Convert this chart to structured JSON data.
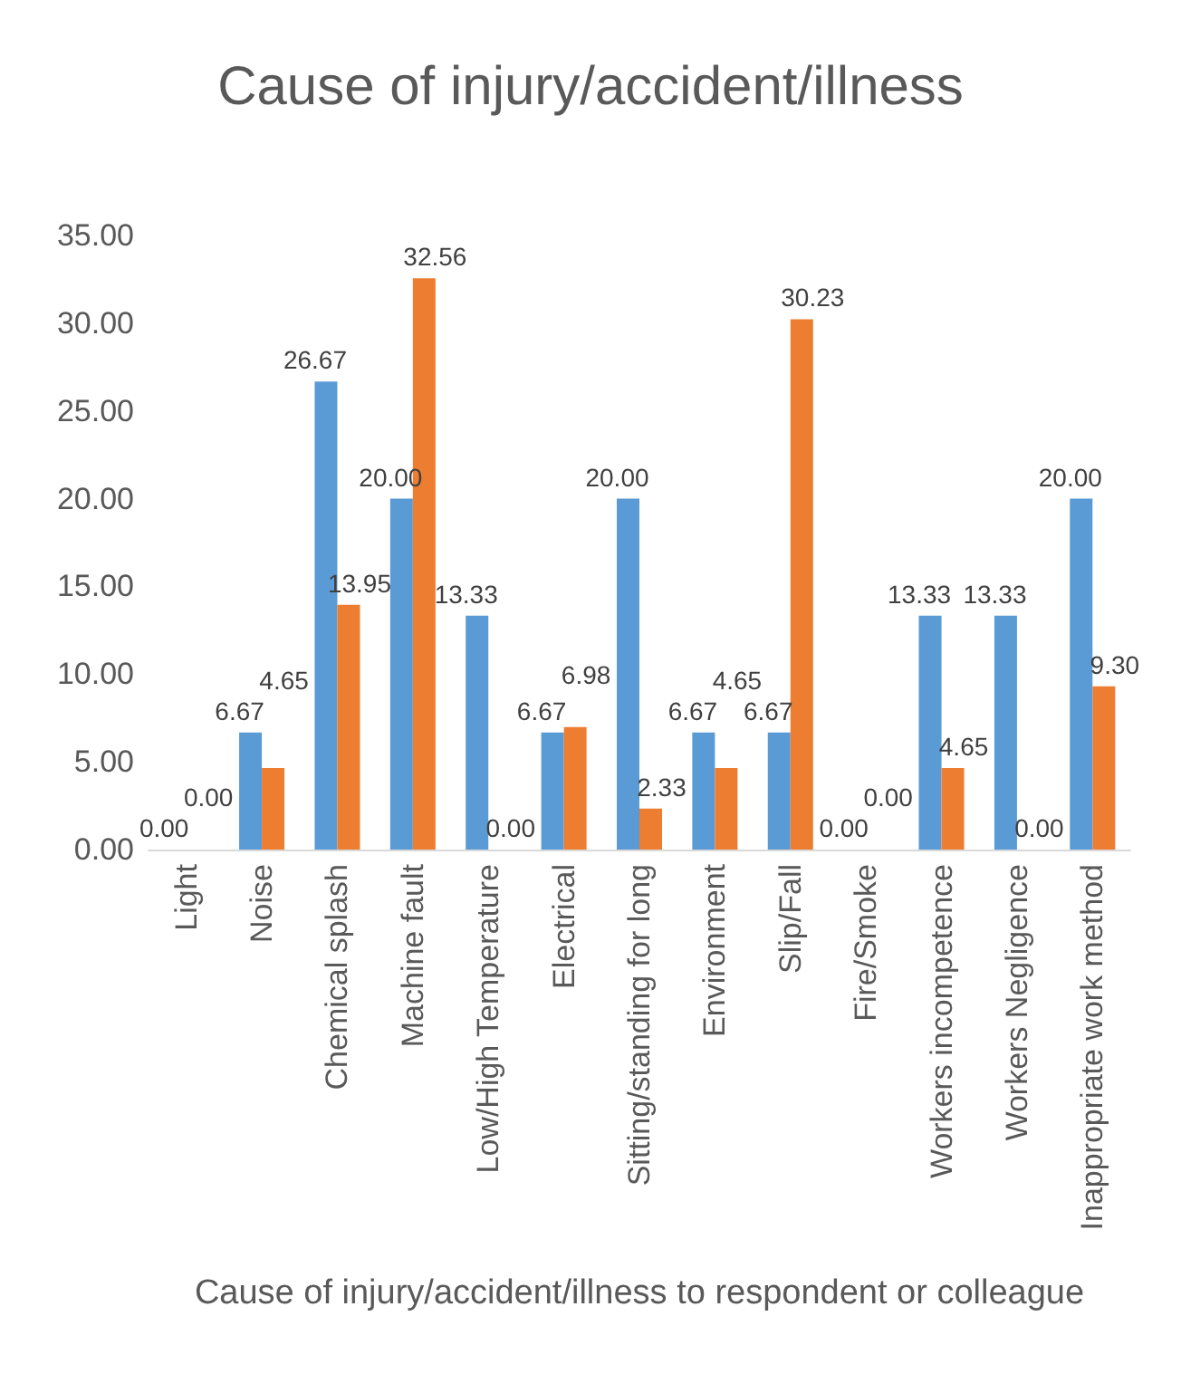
{
  "chart_data": {
    "type": "bar",
    "title": "Cause of injury/accident/illness",
    "xlabel": "Cause of injury/accident/illness to respondent or colleague",
    "categories": [
      "Light",
      "Noise",
      "Chemical splash",
      "Machine fault",
      "Low/High Temperature",
      "Electrical",
      "Sitting/standing for long",
      "Environment",
      "Slip/Fall",
      "Fire/Smoke",
      "Workers incompetence",
      "Workers Negligence",
      "Inappropriate work method"
    ],
    "series": [
      {
        "color": "#5b9bd5",
        "values": [
          0,
          6.67,
          26.67,
          20,
          13.33,
          6.67,
          20,
          6.67,
          6.67,
          0,
          13.33,
          13.33,
          20
        ],
        "value_labels": [
          "0.00",
          "6.67",
          "26.67",
          "20.00",
          "13.33",
          "6.67",
          "20.00",
          "6.67",
          "6.67",
          "0.00",
          "13.33",
          "13.33",
          "20.00"
        ]
      },
      {
        "color": "#ed7d31",
        "values": [
          0,
          4.65,
          13.95,
          32.56,
          0,
          6.98,
          2.33,
          4.65,
          30.23,
          0,
          4.65,
          0,
          9.3
        ],
        "value_labels": [
          "0.00",
          "4.65",
          "13.95",
          "32.56",
          "0.00",
          "6.98",
          "2.33",
          "4.65",
          "30.23",
          "0.00",
          "4.65",
          "0.00",
          "9.30"
        ]
      }
    ],
    "ylim": [
      0,
      35
    ],
    "yticks": [
      {
        "value": 0,
        "label": "0.00"
      },
      {
        "value": 5,
        "label": "5.00"
      },
      {
        "value": 10,
        "label": "10.00"
      },
      {
        "value": 15,
        "label": "15.00"
      },
      {
        "value": 20,
        "label": "20.00"
      },
      {
        "value": 25,
        "label": "25.00"
      },
      {
        "value": 30,
        "label": "30.00"
      },
      {
        "value": 35,
        "label": "35.00"
      }
    ]
  }
}
